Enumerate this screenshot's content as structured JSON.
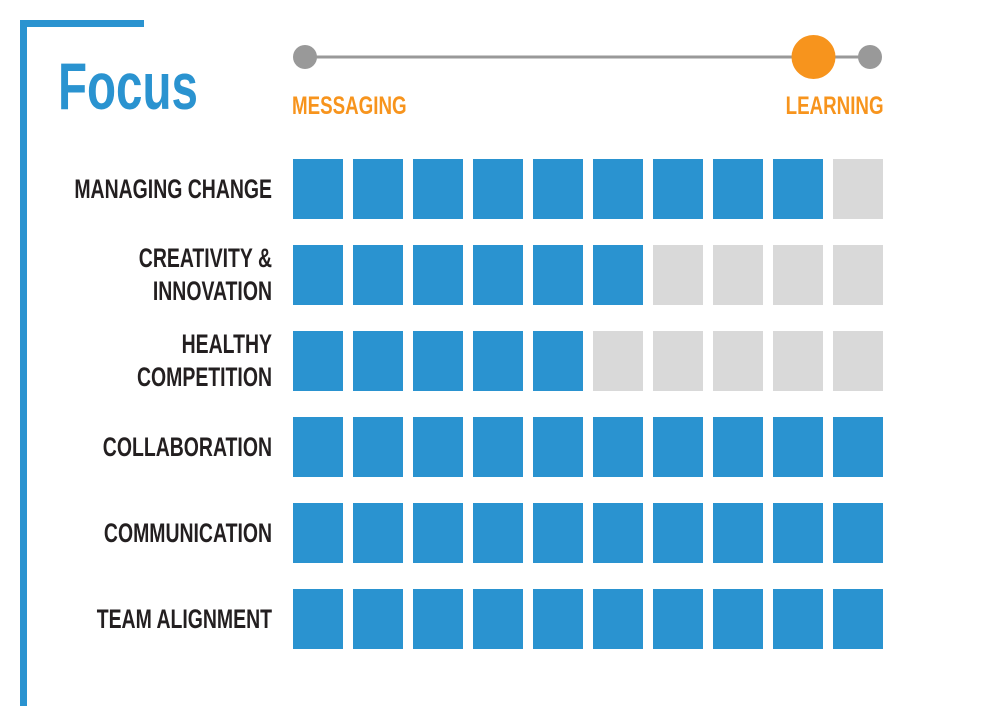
{
  "chart_data": {
    "type": "rating",
    "title": "Focus",
    "slider": {
      "left_label": "MESSAGING",
      "right_label": "LEARNING",
      "value": 0.9,
      "range": [
        0,
        1
      ],
      "color": "#f7941d"
    },
    "categories": [
      "MANAGING CHANGE",
      "CREATIVITY & INNOVATION",
      "HEALTHY COMPETITION",
      "COLLABORATION",
      "COMMUNICATION",
      "TEAM ALIGNMENT"
    ],
    "values": [
      9,
      6,
      5,
      10,
      10,
      10
    ],
    "xlim": [
      0,
      10
    ],
    "color": "#2a93d0",
    "empty_color": "#d9d9d9"
  }
}
